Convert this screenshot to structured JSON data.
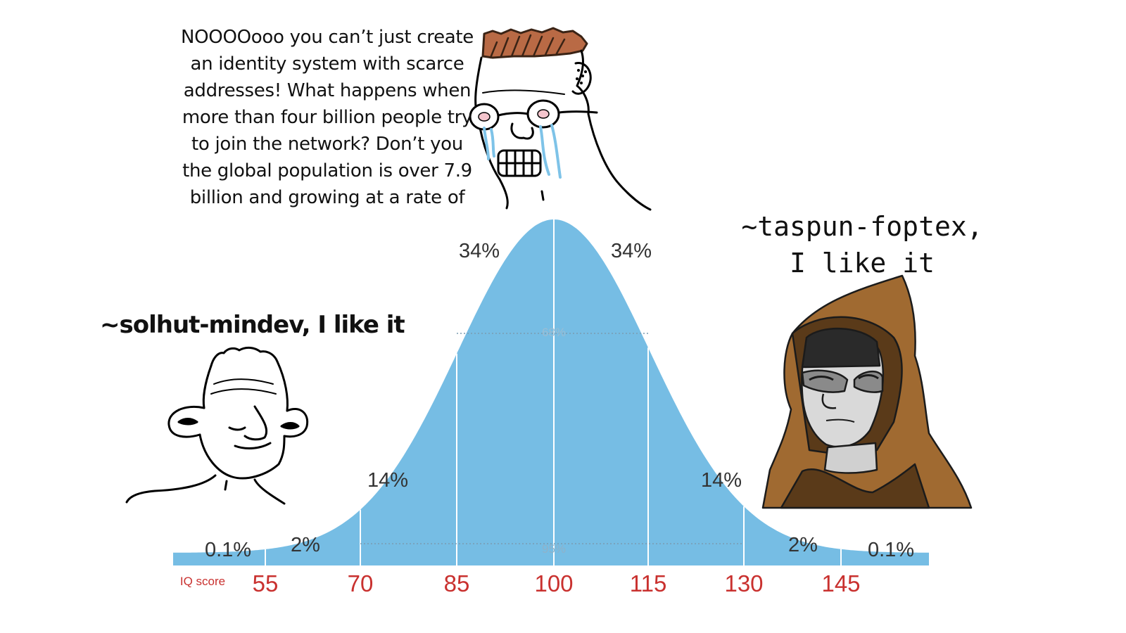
{
  "top_quote_lines": [
    "NOOOOooo you can’t just create",
    "an identity system with scarce",
    "addresses! What happens when",
    "more than four billion people try",
    "to join the network? Don’t you",
    "the global population is over 7.9",
    "billion and growing at a rate of"
  ],
  "left_caption": "~solhut-mindev, I like it",
  "right_caption_lines": [
    "~taspun-foptex,",
    "I like it"
  ],
  "curve": {
    "fill_color": "#76bde4",
    "axis_label": "IQ score",
    "ticks": [
      "55",
      "70",
      "85",
      "100",
      "115",
      "130",
      "145"
    ],
    "tick_color": "#c9312f",
    "segment_percents": [
      "0.1%",
      "2%",
      "14%",
      "34%",
      "34%",
      "14%",
      "2%",
      "0.1%"
    ],
    "inner_labels": [
      "68%",
      "95%"
    ]
  },
  "characters": {
    "left": "wojak-face",
    "top": "crying-soyjak-face",
    "right": "hooded-figure-face"
  }
}
